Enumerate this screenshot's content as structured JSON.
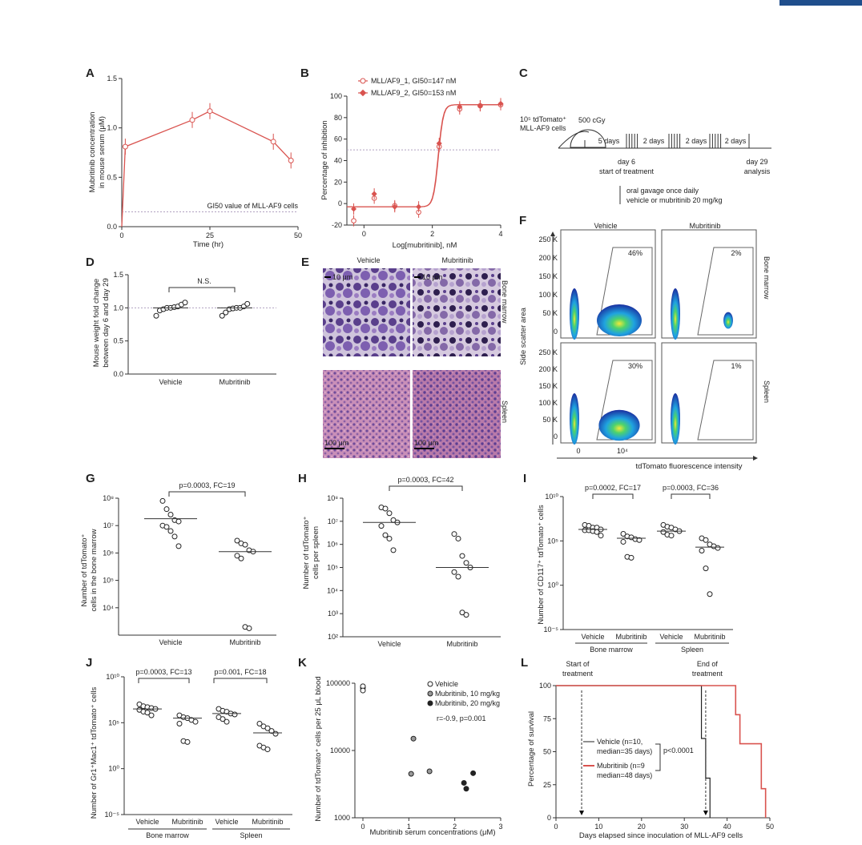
{
  "colors": {
    "red": "#d9534f",
    "black": "#222222",
    "gray_fill": "#9a9a9a",
    "micro_bm": "#5a3f8c",
    "micro_spleen": "#b77aa8",
    "flow_high": "#1fa3e0",
    "flow_low": "#1a2fa0",
    "accent_bar": "#1f4e8c"
  },
  "panels": {
    "A": {
      "label": "A",
      "ylabel1": "Mubritinib concentration",
      "ylabel2": "in mouse serum (μM)",
      "xlabel": "Time (hr)",
      "yticks": [
        "0.0",
        "0.5",
        "1.0",
        "1.5"
      ],
      "xticks": [
        "0",
        "25",
        "50"
      ],
      "annotation": "GI50 value of MLL-AF9 cells"
    },
    "B": {
      "label": "B",
      "ylabel": "Percentage of inhibition",
      "xlabel": "Log[mubritinib], nM",
      "yticks": [
        "-20",
        "0",
        "20",
        "40",
        "60",
        "80",
        "100"
      ],
      "xticks": [
        "0",
        "2",
        "4"
      ],
      "legend": [
        "MLL/AF9_1, GI50=147 nM",
        "MLL/AF9_2, GI50=153 nM"
      ]
    },
    "C": {
      "label": "C",
      "cells": "10⁵ tdTomato⁺",
      "cells2": "MLL-AF9 cells",
      "dose": "500 cGy",
      "gap1": "5 days",
      "gap2": "2 days",
      "gap3": "2 days",
      "gap4": "2 days",
      "day6": "day 6",
      "start": "start of treatment",
      "day29": "day 29",
      "analysis": "analysis",
      "gavage1": "oral gavage once daily",
      "gavage2": "vehicle or mubritinib 20 mg/kg"
    },
    "D": {
      "label": "D",
      "ylabel1": "Mouse weight fold change",
      "ylabel2": "between day 6 and day 29",
      "yticks": [
        "0.0",
        "0.5",
        "1.0",
        "1.5"
      ],
      "cats": [
        "Vehicle",
        "Mubritinib"
      ],
      "sig": "N.S."
    },
    "E": {
      "label": "E",
      "col1": "Vehicle",
      "col2": "Mubritinib",
      "row1": "Bone marrow",
      "row2": "Spleen",
      "scale1": "10 μm",
      "scale2": "10 μm",
      "scale3": "100 μm",
      "scale4": "100 μm"
    },
    "F": {
      "label": "F",
      "col1": "Vehicle",
      "col2": "Mubritinib",
      "row1": "Bone marrow",
      "row2": "Spleen",
      "ylabel": "Side scatter area",
      "xlabel": "tdTomato fluorescence intensity",
      "yticks": [
        "0",
        "50 K",
        "100 K",
        "150 K",
        "200 K",
        "250 K"
      ],
      "xticks": [
        "0",
        "10⁴"
      ],
      "pct": [
        "46%",
        "2%",
        "30%",
        "1%"
      ]
    },
    "G": {
      "label": "G",
      "ylabel1": "Number of tdTomato⁺",
      "ylabel2": "cells in the bone marrow",
      "yticks": [
        "10⁴",
        "10⁵",
        "10⁶",
        "10⁷",
        "10⁸"
      ],
      "cats": [
        "Vehicle",
        "Mubritinib"
      ],
      "sig": "p=0.0003, FC=19"
    },
    "H": {
      "label": "H",
      "ylabel1": "Number of tdTomato⁺",
      "ylabel2": "cells per spleen",
      "yticks": [
        "10²",
        "10³",
        "10⁴",
        "10⁵",
        "10⁶",
        "10⁷",
        "10⁸"
      ],
      "cats": [
        "Vehicle",
        "Mubritinib"
      ],
      "sig": "p=0.0003, FC=42"
    },
    "I": {
      "label": "I",
      "ylabel": "Number of CD117⁺ tdTomato⁺ cells",
      "yticks": [
        "10⁻⁵",
        "10⁰",
        "10⁵",
        "10¹⁰"
      ],
      "cats": [
        "Vehicle",
        "Mubritinib",
        "Vehicle",
        "Mubritinib"
      ],
      "groups": [
        "Bone marrow",
        "Spleen"
      ],
      "sig1": "p=0.0002, FC=17",
      "sig2": "p=0.0003, FC=36"
    },
    "J": {
      "label": "J",
      "ylabel": "Number of Gr1⁺Mac1⁺ tdTomato⁺ cells",
      "yticks": [
        "10⁻⁵",
        "10⁰",
        "10⁵",
        "10¹⁰"
      ],
      "cats": [
        "Vehicle",
        "Mubritinib",
        "Vehicle",
        "Mubritinib"
      ],
      "groups": [
        "Bone marrow",
        "Spleen"
      ],
      "sig1": "p=0.0003, FC=13",
      "sig2": "p=0.001, FC=18"
    },
    "K": {
      "label": "K",
      "ylabel": "Number of tdTomato⁺ cells per 25 μL blood",
      "xlabel": "Mubritinib serum concentrations (μM)",
      "yticks": [
        "1000",
        "10000",
        "100000"
      ],
      "xticks": [
        "0",
        "1",
        "2",
        "3"
      ],
      "legend": [
        "Vehicle",
        "Mubritinib, 10 mg/kg",
        "Mubritinib, 20 mg/kg"
      ],
      "stat": "r=-0.9, p=0.001"
    },
    "L": {
      "label": "L",
      "ylabel": "Percentage of survival",
      "xlabel": "Days elapsed since inoculation of MLL-AF9 cells",
      "yticks": [
        "0",
        "25",
        "50",
        "75",
        "100"
      ],
      "xticks": [
        "0",
        "10",
        "20",
        "30",
        "40",
        "50"
      ],
      "start1": "Start of",
      "start2": "treatment",
      "end1": "End of",
      "end2": "treatment",
      "leg1a": "Vehicle (n=10,",
      "leg1b": "median=35 days)",
      "leg2a": "Mubritinib (n=9",
      "leg2b": "median=48 days)",
      "pval": "p<0.0001"
    }
  },
  "chart_data": [
    {
      "panel": "A",
      "type": "line",
      "x": [
        0,
        1,
        20,
        25,
        43,
        48
      ],
      "y": [
        0,
        0.81,
        1.08,
        1.17,
        0.86,
        0.67
      ],
      "xlim": [
        0,
        50
      ],
      "ylim": [
        0,
        1.5
      ],
      "gi50_line": 0.15
    },
    {
      "panel": "B",
      "type": "scatter",
      "series": [
        {
          "name": "MLL/AF9_1, GI50=147 nM",
          "x": [
            -0.3,
            0.3,
            0.9,
            1.6,
            2.2,
            2.8,
            3.4,
            4.0
          ],
          "y": [
            -16,
            5,
            -2,
            -8,
            53,
            88,
            91,
            92
          ]
        },
        {
          "name": "MLL/AF9_2, GI50=153 nM",
          "x": [
            -0.3,
            0.3,
            0.9,
            1.6,
            2.2,
            2.8,
            3.4,
            4.0
          ],
          "y": [
            -5,
            9,
            -3,
            -3,
            56,
            90,
            91,
            93
          ]
        }
      ],
      "xlim": [
        -0.5,
        4
      ],
      "ylim": [
        -20,
        100
      ],
      "ref_line": 50
    },
    {
      "panel": "D",
      "type": "scatter",
      "categories": [
        "Vehicle",
        "Mubritinib"
      ],
      "values": [
        [
          0.88,
          0.96,
          0.98,
          1.0,
          1.0,
          1.01,
          1.02,
          1.05,
          1.08
        ],
        [
          0.88,
          0.93,
          0.98,
          0.99,
          1.0,
          1.0,
          1.02,
          1.06
        ]
      ],
      "medians": [
        1.0,
        1.0
      ],
      "ylim": [
        0,
        1.5
      ]
    },
    {
      "panel": "G",
      "type": "scatter",
      "log": true,
      "categories": [
        "Vehicle",
        "Mubritinib"
      ],
      "values": [
        [
          7.9,
          7.6,
          7.4,
          7.2,
          7.15,
          7.0,
          6.95,
          6.8,
          6.6,
          6.25
        ],
        [
          6.45,
          6.35,
          6.3,
          6.1,
          6.05,
          5.9,
          5.8,
          3.3,
          3.25
        ]
      ],
      "medians": [
        7.25,
        6.05
      ],
      "ylim": [
        3,
        8
      ]
    },
    {
      "panel": "H",
      "type": "scatter",
      "log": true,
      "categories": [
        "Vehicle",
        "Mubritinib"
      ],
      "values": [
        [
          7.6,
          7.55,
          7.35,
          7.05,
          6.95,
          6.8,
          6.4,
          6.25,
          5.75
        ],
        [
          6.45,
          6.25,
          5.5,
          5.2,
          5.0,
          4.8,
          4.6,
          3.05,
          2.95
        ]
      ],
      "medians": [
        6.95,
        5.0
      ],
      "ylim": [
        2,
        8
      ]
    },
    {
      "panel": "I",
      "type": "scatter",
      "log": true,
      "categories": [
        "Vehicle",
        "Mubritinib",
        "Vehicle",
        "Mubritinib"
      ],
      "values": [
        [
          6.8,
          6.7,
          6.5,
          6.5,
          6.3,
          6.2,
          6.2,
          6.1,
          6.0,
          5.6
        ],
        [
          5.8,
          5.5,
          5.4,
          5.2,
          5.1,
          4.9,
          3.2,
          3.1
        ],
        [
          6.8,
          6.6,
          6.5,
          6.3,
          6.1,
          6.0,
          5.7,
          5.6
        ],
        [
          5.3,
          5.1,
          4.6,
          4.4,
          4.2,
          3.9,
          1.9,
          -1.0
        ]
      ],
      "medians": [
        6.3,
        5.3,
        6.1,
        4.3
      ],
      "ylim": [
        -5,
        10
      ]
    },
    {
      "panel": "J",
      "type": "scatter",
      "log": true,
      "categories": [
        "Vehicle",
        "Mubritinib",
        "Vehicle",
        "Mubritinib"
      ],
      "values": [
        [
          7.0,
          6.8,
          6.7,
          6.6,
          6.5,
          6.4,
          6.2,
          6.1,
          5.8
        ],
        [
          5.8,
          5.6,
          5.5,
          5.3,
          5.1,
          4.9,
          3.0,
          2.9
        ],
        [
          6.5,
          6.3,
          6.2,
          6.0,
          5.9,
          5.6,
          5.4,
          5.1
        ],
        [
          4.9,
          4.6,
          4.4,
          4.1,
          3.8,
          2.5,
          2.3,
          2.1
        ]
      ],
      "medians": [
        6.5,
        5.5,
        6.0,
        3.9
      ],
      "ylim": [
        -5,
        10
      ]
    },
    {
      "panel": "K",
      "type": "scatter",
      "ylog": true,
      "series": [
        {
          "name": "Vehicle",
          "x": [
            0,
            0,
            0
          ],
          "y": [
            85000,
            90000,
            78000
          ]
        },
        {
          "name": "Mubritinib, 10 mg/kg",
          "x": [
            1.05,
            1.1,
            1.45
          ],
          "y": [
            4500,
            15000,
            4900
          ]
        },
        {
          "name": "Mubritinib, 20 mg/kg",
          "x": [
            2.2,
            2.25,
            2.4
          ],
          "y": [
            3300,
            2700,
            4600
          ]
        }
      ],
      "xlim": [
        0,
        3
      ],
      "ylim": [
        1000,
        100000
      ]
    },
    {
      "panel": "L",
      "type": "line",
      "series": [
        {
          "name": "Vehicle (n=10, median=35 days)",
          "x": [
            0,
            34,
            34,
            35,
            35,
            36,
            36
          ],
          "y": [
            100,
            100,
            60,
            60,
            30,
            30,
            0
          ]
        },
        {
          "name": "Mubritinib (n=9 median=48 days)",
          "x": [
            0,
            42,
            42,
            43,
            43,
            44,
            44,
            48,
            48,
            49,
            49
          ],
          "y": [
            100,
            100,
            78,
            78,
            56,
            56,
            56,
            56,
            22,
            22,
            0
          ]
        }
      ],
      "xlim": [
        0,
        50
      ],
      "ylim": [
        0,
        100
      ],
      "start_day": 6,
      "end_day": 35
    }
  ]
}
